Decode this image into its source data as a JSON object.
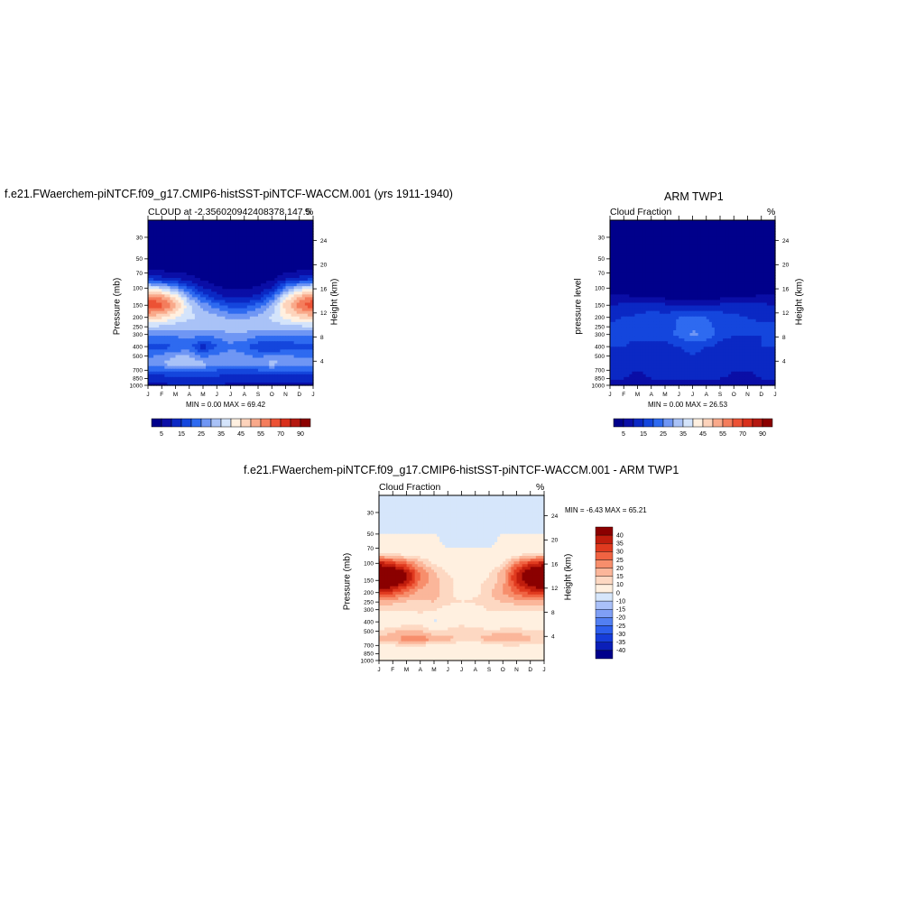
{
  "chart_data": [
    {
      "type": "heatmap",
      "title": "f.e21.FWaerchem-piNTCF.f09_g17.CMIP6-histSST-piNTCF-WACCM.001 (yrs 1911-1940)",
      "left_string": "CLOUD at -2.356020942408378,147.5",
      "right_string": "%",
      "ylabel": "Pressure (mb)",
      "ylabel_right": "Height (km)",
      "x_ticks": [
        "J",
        "F",
        "M",
        "A",
        "M",
        "J",
        "J",
        "A",
        "S",
        "O",
        "N",
        "D",
        "J"
      ],
      "y_ticks": [
        30,
        50,
        70,
        100,
        150,
        200,
        250,
        300,
        400,
        500,
        700,
        850,
        1000
      ],
      "height_ticks": [
        24,
        20,
        16,
        12,
        8,
        4
      ],
      "ylim": [
        1000,
        20
      ],
      "stats": "MIN =   0.00 MAX =  69.42",
      "colorbar_labels": [
        "5",
        "15",
        "25",
        "35",
        "45",
        "55",
        "70",
        "90"
      ],
      "profile_levels": [
        20,
        40,
        60,
        80,
        100,
        125,
        150,
        200,
        250,
        300,
        400,
        500,
        600,
        700,
        850,
        1000
      ],
      "months": [
        "J",
        "F",
        "M",
        "A",
        "M",
        "J",
        "J",
        "A",
        "S",
        "O",
        "N",
        "D",
        "J"
      ],
      "values": [
        [
          1,
          1,
          1,
          1,
          1,
          1,
          1,
          1,
          1,
          1,
          1,
          1,
          1
        ],
        [
          1,
          1,
          1,
          1,
          1,
          1,
          1,
          1,
          1,
          1,
          1,
          1,
          1
        ],
        [
          1,
          1,
          1,
          1,
          1,
          1,
          1,
          1,
          1,
          1,
          1,
          1,
          1
        ],
        [
          14,
          12,
          10,
          7,
          4,
          2,
          1,
          1,
          2,
          4,
          9,
          12,
          14
        ],
        [
          40,
          35,
          28,
          18,
          10,
          6,
          4,
          4,
          6,
          10,
          25,
          35,
          40
        ],
        [
          58,
          55,
          45,
          30,
          20,
          13,
          9,
          9,
          12,
          22,
          40,
          52,
          58
        ],
        [
          66,
          62,
          52,
          36,
          28,
          22,
          18,
          18,
          22,
          30,
          48,
          58,
          66
        ],
        [
          48,
          46,
          40,
          36,
          34,
          32,
          28,
          28,
          32,
          36,
          42,
          46,
          48
        ],
        [
          35,
          34,
          32,
          32,
          32,
          34,
          34,
          34,
          32,
          32,
          33,
          34,
          35
        ],
        [
          26,
          26,
          26,
          27,
          27,
          27,
          28,
          28,
          27,
          26,
          26,
          26,
          26
        ],
        [
          18,
          18,
          20,
          22,
          12,
          20,
          24,
          22,
          16,
          14,
          16,
          18,
          18
        ],
        [
          24,
          26,
          30,
          30,
          24,
          26,
          28,
          26,
          24,
          26,
          26,
          24,
          24
        ],
        [
          28,
          30,
          34,
          36,
          32,
          30,
          28,
          28,
          30,
          32,
          30,
          28,
          28
        ],
        [
          20,
          20,
          22,
          22,
          20,
          20,
          18,
          18,
          20,
          20,
          20,
          20,
          20
        ],
        [
          12,
          12,
          14,
          14,
          14,
          13,
          12,
          12,
          12,
          12,
          12,
          12,
          12
        ],
        [
          9,
          9,
          10,
          10,
          10,
          10,
          9,
          9,
          9,
          9,
          9,
          9,
          9
        ]
      ]
    },
    {
      "type": "heatmap",
      "title": "ARM TWP1",
      "left_string": "Cloud Fraction",
      "right_string": "%",
      "ylabel": "pressure level",
      "ylabel_right": "Height (km)",
      "x_ticks": [
        "J",
        "F",
        "M",
        "A",
        "M",
        "J",
        "J",
        "A",
        "S",
        "O",
        "N",
        "D",
        "J"
      ],
      "y_ticks": [
        30,
        50,
        70,
        100,
        150,
        200,
        250,
        300,
        400,
        500,
        700,
        850,
        1000
      ],
      "height_ticks": [
        24,
        20,
        16,
        12,
        8,
        4
      ],
      "ylim": [
        1000,
        20
      ],
      "stats": "MIN =   0.00 MAX =  26.53",
      "colorbar_labels": [
        "5",
        "15",
        "25",
        "35",
        "45",
        "55",
        "70",
        "90"
      ],
      "profile_levels": [
        20,
        40,
        60,
        80,
        100,
        125,
        150,
        200,
        250,
        300,
        400,
        500,
        600,
        700,
        850,
        1000
      ],
      "months": [
        "J",
        "F",
        "M",
        "A",
        "M",
        "J",
        "J",
        "A",
        "S",
        "O",
        "N",
        "D",
        "J"
      ],
      "values": [
        [
          1,
          1,
          1,
          1,
          1,
          1,
          1,
          1,
          1,
          1,
          1,
          1,
          1
        ],
        [
          1,
          1,
          1,
          1,
          1,
          1,
          1,
          1,
          1,
          1,
          1,
          1,
          1
        ],
        [
          1,
          1,
          1,
          1,
          1,
          1,
          1,
          1,
          1,
          1,
          1,
          1,
          1
        ],
        [
          1,
          1,
          1,
          1,
          1,
          1,
          1,
          1,
          1,
          1,
          1,
          1,
          1
        ],
        [
          2,
          2,
          2,
          2,
          2,
          2,
          2,
          2,
          2,
          2,
          2,
          2,
          2
        ],
        [
          6,
          6,
          5,
          5,
          4,
          4,
          4,
          4,
          4,
          5,
          5,
          6,
          6
        ],
        [
          10,
          11,
          12,
          12,
          11,
          10,
          10,
          10,
          11,
          12,
          12,
          11,
          10
        ],
        [
          14,
          15,
          16,
          18,
          17,
          20,
          22,
          20,
          18,
          16,
          15,
          14,
          14
        ],
        [
          16,
          17,
          18,
          18,
          17,
          21,
          24,
          22,
          18,
          17,
          16,
          16,
          16
        ],
        [
          15,
          16,
          16,
          16,
          16,
          22,
          26,
          24,
          16,
          15,
          15,
          15,
          15
        ],
        [
          15,
          15,
          14,
          14,
          14,
          15,
          16,
          15,
          14,
          14,
          14,
          15,
          15
        ],
        [
          13,
          12,
          13,
          14,
          14,
          14,
          15,
          14,
          12,
          12,
          12,
          13,
          13
        ],
        [
          12,
          11,
          11,
          12,
          12,
          13,
          14,
          14,
          12,
          11,
          11,
          12,
          12
        ],
        [
          12,
          11,
          10,
          11,
          12,
          13,
          13,
          13,
          12,
          10,
          10,
          11,
          12
        ],
        [
          10,
          10,
          9,
          10,
          10,
          10,
          10,
          10,
          10,
          9,
          9,
          10,
          10
        ],
        [
          8,
          8,
          8,
          8,
          8,
          8,
          8,
          8,
          8,
          8,
          8,
          8,
          8
        ]
      ]
    },
    {
      "type": "heatmap",
      "title": "f.e21.FWaerchem-piNTCF.f09_g17.CMIP6-histSST-piNTCF-WACCM.001 - ARM TWP1",
      "left_string": "Cloud Fraction",
      "right_string": "%",
      "ylabel": "Pressure (mb)",
      "ylabel_right": "Height (km)",
      "x_ticks": [
        "J",
        "F",
        "M",
        "A",
        "M",
        "J",
        "J",
        "A",
        "S",
        "O",
        "N",
        "D",
        "J"
      ],
      "y_ticks": [
        30,
        50,
        70,
        100,
        150,
        200,
        250,
        300,
        400,
        500,
        700,
        850,
        1000
      ],
      "height_ticks": [
        24,
        20,
        16,
        12,
        8,
        4
      ],
      "ylim": [
        1000,
        20
      ],
      "stats": "MIN =  -6.43 MAX =  65.21",
      "colorbar_labels": [
        "40",
        "35",
        "30",
        "25",
        "20",
        "15",
        "10",
        "0",
        "-10",
        "-15",
        "-20",
        "-25",
        "-30",
        "-35",
        "-40"
      ],
      "profile_levels": [
        20,
        40,
        60,
        80,
        100,
        125,
        150,
        200,
        250,
        300,
        400,
        500,
        600,
        700,
        850,
        1000
      ],
      "months": [
        "J",
        "F",
        "M",
        "A",
        "M",
        "J",
        "J",
        "A",
        "S",
        "O",
        "N",
        "D",
        "J"
      ],
      "values": [
        [
          -1,
          -1,
          -1,
          -1,
          -1,
          -1,
          -1,
          -1,
          -1,
          -1,
          -1,
          -1,
          -1
        ],
        [
          -1,
          -1,
          -1,
          -1,
          -1,
          -1,
          -1,
          -1,
          -1,
          -1,
          -1,
          -1,
          -1
        ],
        [
          1,
          1,
          1,
          1,
          1,
          -1,
          -1,
          -1,
          -1,
          1,
          1,
          1,
          1
        ],
        [
          12,
          10,
          8,
          6,
          3,
          1,
          1,
          1,
          1,
          3,
          8,
          10,
          12
        ],
        [
          38,
          33,
          26,
          17,
          9,
          5,
          3,
          3,
          5,
          9,
          24,
          34,
          38
        ],
        [
          52,
          49,
          40,
          25,
          16,
          10,
          6,
          6,
          9,
          18,
          35,
          46,
          52
        ],
        [
          56,
          51,
          40,
          24,
          17,
          12,
          8,
          8,
          11,
          18,
          36,
          47,
          56
        ],
        [
          34,
          31,
          24,
          18,
          17,
          12,
          6,
          8,
          14,
          20,
          27,
          32,
          34
        ],
        [
          19,
          17,
          14,
          14,
          15,
          13,
          10,
          12,
          14,
          15,
          17,
          18,
          19
        ],
        [
          11,
          10,
          10,
          11,
          11,
          5,
          2,
          4,
          11,
          11,
          11,
          11,
          11
        ],
        [
          3,
          3,
          6,
          8,
          -2,
          5,
          8,
          7,
          2,
          -1,
          2,
          3,
          3
        ],
        [
          11,
          14,
          17,
          16,
          10,
          12,
          13,
          12,
          12,
          14,
          14,
          11,
          11
        ],
        [
          16,
          19,
          23,
          24,
          20,
          17,
          14,
          14,
          18,
          21,
          19,
          16,
          16
        ],
        [
          8,
          9,
          12,
          11,
          8,
          7,
          5,
          5,
          8,
          10,
          10,
          9,
          8
        ],
        [
          2,
          2,
          5,
          4,
          4,
          3,
          2,
          2,
          2,
          3,
          3,
          2,
          2
        ],
        [
          1,
          1,
          2,
          2,
          2,
          2,
          1,
          1,
          1,
          1,
          1,
          1,
          1
        ]
      ]
    }
  ]
}
